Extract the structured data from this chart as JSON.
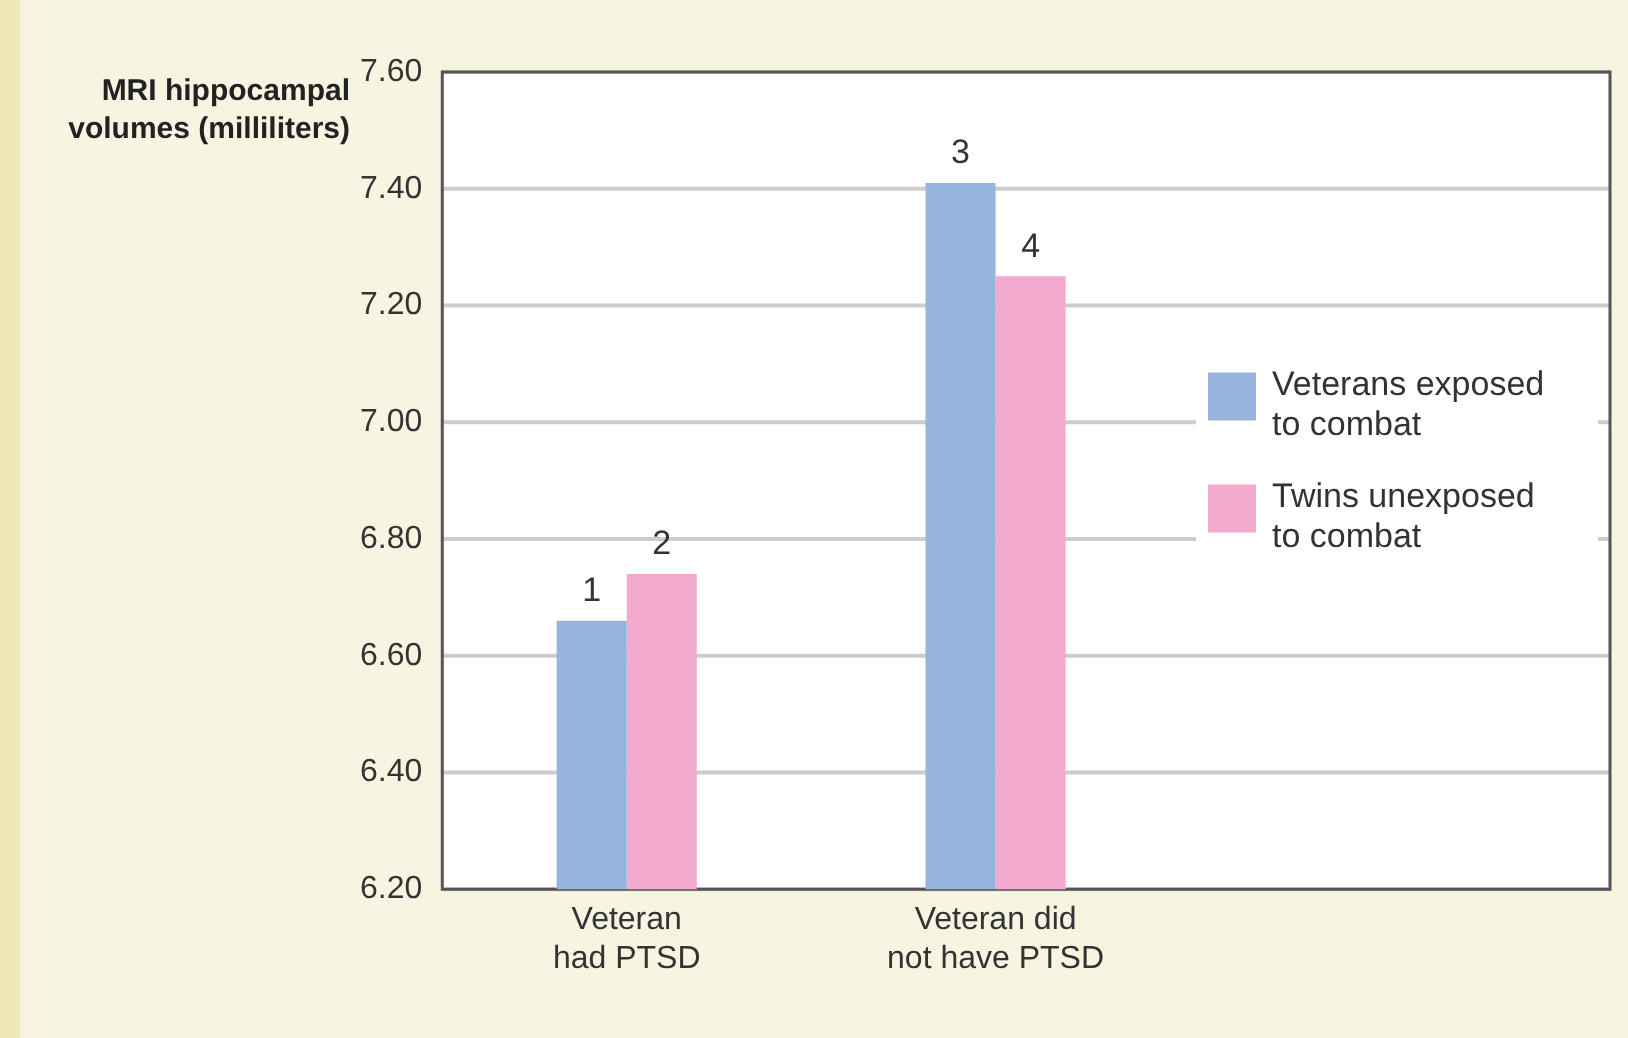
{
  "chart_data": {
    "type": "bar",
    "ylabel": "MRI hippocampal volumes (milliliters)",
    "categories": [
      "Veteran had PTSD",
      "Veteran did not have PTSD"
    ],
    "series": [
      {
        "name": "Veterans exposed to combat",
        "color": "#97b4dc",
        "values": [
          6.66,
          7.41
        ]
      },
      {
        "name": "Twins unexposed to combat",
        "color": "#f4aacf",
        "values": [
          6.74,
          7.25
        ]
      }
    ],
    "ylim": [
      6.2,
      7.6
    ],
    "yticks": [
      {
        "value": 6.2,
        "label": "6.20"
      },
      {
        "value": 6.4,
        "label": "6.40"
      },
      {
        "value": 6.6,
        "label": "6.60"
      },
      {
        "value": 6.8,
        "label": "6.80"
      },
      {
        "value": 7.0,
        "label": "7.00"
      },
      {
        "value": 7.2,
        "label": "7.20"
      },
      {
        "value": 7.4,
        "label": "7.40"
      },
      {
        "value": 7.6,
        "label": "7.60"
      }
    ],
    "grid": "y",
    "legend": "right",
    "annotations": [
      {
        "text": "1",
        "x": "Veteran had PTSD",
        "y": 6.66
      },
      {
        "text": "2",
        "x": "Veteran had PTSD",
        "y": 6.74
      },
      {
        "text": "3",
        "x": "Veteran did not have PTSD",
        "y": 7.41
      },
      {
        "text": "4",
        "x": "Veteran did not have PTSD",
        "y": 7.25
      }
    ]
  }
}
